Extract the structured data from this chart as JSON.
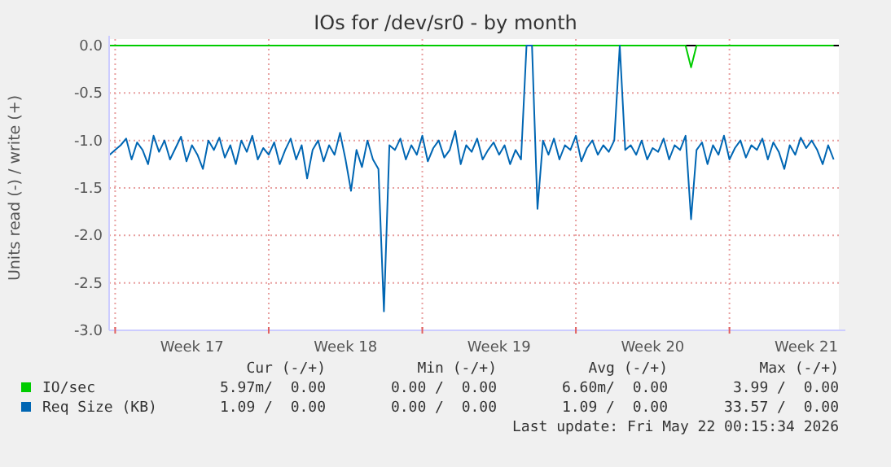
{
  "chart_data": {
    "type": "line",
    "title": "IOs for /dev/sr0 - by month",
    "ylabel": "Units read (-) / write (+)",
    "categories": [
      null,
      null,
      null,
      null,
      null,
      null,
      null,
      null,
      null,
      null,
      null,
      null,
      null,
      null,
      null,
      "Week 17",
      null,
      null,
      null,
      null,
      null,
      null,
      null,
      null,
      null,
      null,
      null,
      null,
      null,
      null,
      null,
      null,
      null,
      null,
      null,
      null,
      null,
      null,
      null,
      null,
      null,
      null,
      null,
      "Week 18",
      null,
      null,
      null,
      null,
      null,
      null,
      null,
      null,
      null,
      null,
      null,
      null,
      null,
      null,
      null,
      null,
      null,
      null,
      null,
      null,
      null,
      null,
      null,
      null,
      null,
      null,
      null,
      "Week 19",
      null,
      null,
      null,
      null,
      null,
      null,
      null,
      null,
      null,
      null,
      null,
      null,
      null,
      null,
      null,
      null,
      null,
      null,
      null,
      null,
      null,
      null,
      null,
      null,
      null,
      null,
      null,
      "Week 20",
      null,
      null,
      null,
      null,
      null,
      null,
      null,
      null,
      null,
      null,
      null,
      null,
      null,
      null,
      null,
      null,
      null,
      null,
      null,
      null,
      null,
      null,
      null,
      null,
      null,
      null,
      null,
      "Week 21",
      null,
      null,
      null,
      null,
      null
    ],
    "series": [
      {
        "name": "IO/sec",
        "color": "#00cc00",
        "values": [
          0,
          0,
          0,
          0,
          0,
          0,
          0,
          0,
          0,
          0,
          0,
          0,
          0,
          0,
          0,
          0,
          0,
          0,
          0,
          0,
          0,
          0,
          0,
          0,
          0,
          0,
          0,
          0,
          0,
          0,
          0,
          0,
          0,
          0,
          0,
          0,
          0,
          0,
          0,
          0,
          0,
          0,
          0,
          0,
          0,
          0,
          0,
          0,
          0,
          0,
          0,
          0,
          0,
          0,
          0,
          0,
          0,
          0,
          0,
          0,
          0,
          0,
          0,
          0,
          0,
          0,
          0,
          0,
          0,
          0,
          0,
          0,
          0,
          0,
          0,
          0,
          0,
          0,
          0,
          0,
          0,
          0,
          0,
          0,
          0,
          0,
          0,
          0,
          0,
          0,
          0,
          0,
          0,
          0,
          0,
          0,
          0,
          0,
          0,
          0,
          0,
          0,
          0,
          0,
          0,
          0,
          -0.23,
          0,
          0,
          0,
          0,
          0,
          0,
          0,
          0,
          0,
          0,
          0,
          0,
          0,
          0,
          0,
          0,
          0,
          0,
          0,
          0,
          0,
          0,
          0,
          0,
          0,
          0
        ]
      },
      {
        "name": "Req Size (KB)",
        "color": "#0066b3",
        "values": [
          -1.15,
          -1.1,
          -1.05,
          -0.98,
          -1.2,
          -1.02,
          -1.1,
          -1.25,
          -0.95,
          -1.12,
          -1.0,
          -1.2,
          -1.08,
          -0.96,
          -1.22,
          -1.05,
          -1.15,
          -1.3,
          -1.0,
          -1.1,
          -0.97,
          -1.18,
          -1.05,
          -1.25,
          -1.0,
          -1.12,
          -0.95,
          -1.2,
          -1.08,
          -1.15,
          -1.02,
          -1.25,
          -1.1,
          -0.98,
          -1.2,
          -1.05,
          -1.4,
          -1.1,
          -1.0,
          -1.22,
          -1.05,
          -1.15,
          -0.92,
          -1.2,
          -1.53,
          -1.1,
          -1.28,
          -1.0,
          -1.2,
          -1.3,
          -2.8,
          -1.05,
          -1.1,
          -0.98,
          -1.2,
          -1.05,
          -1.15,
          -0.95,
          -1.22,
          -1.08,
          -1.0,
          -1.18,
          -1.1,
          -0.9,
          -1.25,
          -1.05,
          -1.12,
          -0.98,
          -1.2,
          -1.1,
          -1.02,
          -1.15,
          -1.05,
          -1.25,
          -1.1,
          -1.2,
          0,
          0,
          -1.72,
          -1.0,
          -1.15,
          -0.98,
          -1.2,
          -1.05,
          -1.1,
          -0.95,
          -1.22,
          -1.08,
          -1.0,
          -1.15,
          -1.05,
          -1.12,
          -1.0,
          0,
          -1.1,
          -1.05,
          -1.15,
          -1.0,
          -1.2,
          -1.08,
          -1.12,
          -0.98,
          -1.2,
          -1.05,
          -1.1,
          -0.95,
          -1.83,
          -1.1,
          -1.02,
          -1.25,
          -1.05,
          -1.15,
          -0.95,
          -1.2,
          -1.08,
          -1.0,
          -1.18,
          -1.05,
          -1.1,
          -0.98,
          -1.2,
          -1.02,
          -1.12,
          -1.3,
          -1.05,
          -1.15,
          -0.97,
          -1.08,
          -1.0,
          -1.1,
          -1.25,
          -1.05,
          -1.2
        ]
      }
    ],
    "ylim": [
      -3.0,
      0.0
    ],
    "yticks": [
      {
        "value": 0,
        "label": "0.0"
      },
      {
        "value": -0.5,
        "label": "-0.5"
      },
      {
        "value": -1,
        "label": "-1.0"
      },
      {
        "value": -1.5,
        "label": "-1.5"
      },
      {
        "value": -2,
        "label": "-2.0"
      },
      {
        "value": -2.5,
        "label": "-2.5"
      },
      {
        "value": -3,
        "label": "-3.0"
      }
    ],
    "grid": true,
    "legend": "bottom",
    "ref_lines": [
      {
        "axis": "y",
        "value": 0,
        "color": "#000000"
      }
    ],
    "annotations": [
      "Cur (-/+)",
      "Min (-/+)",
      "Avg (-/+)",
      "Max (-/+)",
      "5.97m/  0.00",
      "0.00 /  0.00",
      "6.60m/  0.00",
      "3.99 /  0.00",
      "1.09 /  0.00",
      "0.00 /  0.00",
      "1.09 /  0.00",
      "33.57 /  0.00",
      "Last update: Fri May 22 00:15:34 2026"
    ]
  }
}
